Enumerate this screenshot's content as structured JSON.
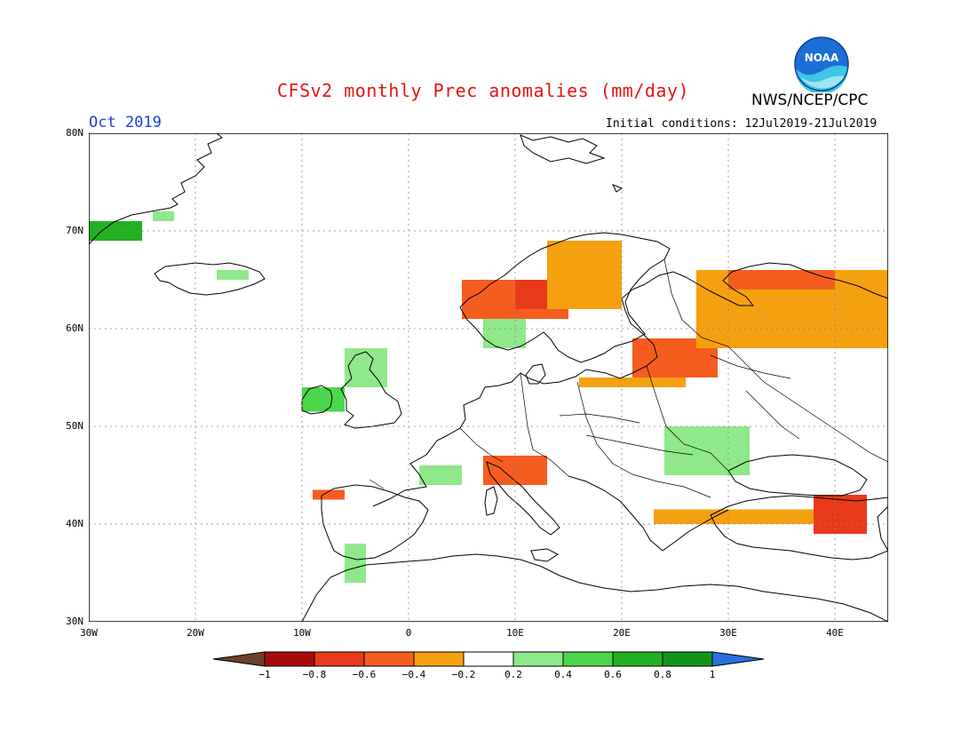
{
  "header": {
    "title": "CFSv2 monthly Prec anomalies (mm/day)",
    "agency": "NWS/NCEP/CPC",
    "period": "Oct 2019",
    "initial_conditions": "Initial conditions: 12Jul2019-21Jul2019",
    "logo_text": "NOAA"
  },
  "map": {
    "region": "Europe",
    "lat_labels": [
      "80N",
      "70N",
      "60N",
      "50N",
      "40N",
      "30N"
    ],
    "lon_labels": [
      "30W",
      "20W",
      "10W",
      "0",
      "10E",
      "20E",
      "30E",
      "40E"
    ],
    "lat_range": [
      30,
      80
    ],
    "lon_range": [
      -30,
      45
    ],
    "grid": "dotted",
    "anomaly_regions": [
      {
        "name": "E Greenland coast",
        "lat": [
          69,
          71
        ],
        "lon": [
          -30,
          -25
        ],
        "value": 0.6
      },
      {
        "name": "Greenland small",
        "lat": [
          71,
          72
        ],
        "lon": [
          -24,
          -22
        ],
        "value": 0.3
      },
      {
        "name": "Iceland NE",
        "lat": [
          65,
          66
        ],
        "lon": [
          -18,
          -15
        ],
        "value": 0.3
      },
      {
        "name": "Ireland",
        "lat": [
          51.5,
          54
        ],
        "lon": [
          -10,
          -6
        ],
        "value": 0.4
      },
      {
        "name": "Scotland",
        "lat": [
          54,
          58
        ],
        "lon": [
          -6,
          -2
        ],
        "value": 0.3
      },
      {
        "name": "W Norway coast",
        "lat": [
          61,
          65
        ],
        "lon": [
          5,
          15
        ],
        "value": -0.6
      },
      {
        "name": "Mid Norway",
        "lat": [
          62,
          65
        ],
        "lon": [
          10,
          13
        ],
        "value": -0.8
      },
      {
        "name": "N Scandinavia",
        "lat": [
          62,
          69
        ],
        "lon": [
          13,
          20
        ],
        "value": -0.3
      },
      {
        "name": "S Norway",
        "lat": [
          58,
          61
        ],
        "lon": [
          7,
          11
        ],
        "value": 0.3
      },
      {
        "name": "Baltic states",
        "lat": [
          55,
          59
        ],
        "lon": [
          21,
          29
        ],
        "value": -0.5
      },
      {
        "name": "NW Russia",
        "lat": [
          58,
          66
        ],
        "lon": [
          27,
          45
        ],
        "value": -0.3
      },
      {
        "name": "Kola",
        "lat": [
          64,
          66
        ],
        "lon": [
          30,
          40
        ],
        "value": -0.5
      },
      {
        "name": "Poland N",
        "lat": [
          54,
          55
        ],
        "lon": [
          16,
          26
        ],
        "value": -0.3
      },
      {
        "name": "Alps / N Italy",
        "lat": [
          44,
          47
        ],
        "lon": [
          7,
          13
        ],
        "value": -0.5
      },
      {
        "name": "France C",
        "lat": [
          44,
          46
        ],
        "lon": [
          1,
          5
        ],
        "value": 0.3
      },
      {
        "name": "Romania / Moldova",
        "lat": [
          45,
          50
        ],
        "lon": [
          24,
          32
        ],
        "value": 0.35
      },
      {
        "name": "NW Spain",
        "lat": [
          42.5,
          43.5
        ],
        "lon": [
          -9,
          -6
        ],
        "value": -0.5
      },
      {
        "name": "S Spain / Morocco",
        "lat": [
          34,
          38
        ],
        "lon": [
          -6,
          -4
        ],
        "value": 0.35
      },
      {
        "name": "Turkey N",
        "lat": [
          40,
          41.5
        ],
        "lon": [
          23,
          39
        ],
        "value": -0.3
      },
      {
        "name": "Caucasus",
        "lat": [
          39,
          43
        ],
        "lon": [
          38,
          43
        ],
        "value": -0.8
      }
    ]
  },
  "colorbar": {
    "ticks": [
      "−1",
      "−0.8",
      "−0.6",
      "−0.4",
      "−0.2",
      "0.2",
      "0.4",
      "0.6",
      "0.8",
      "1"
    ],
    "colors": [
      "#a80b0b",
      "#e83a1a",
      "#f55d1f",
      "#f5a010",
      "#ffffff",
      "#8fe88a",
      "#4cd64c",
      "#22b022",
      "#14951a"
    ],
    "under_color": "#6b4028",
    "over_color": "#2b6fe0"
  }
}
